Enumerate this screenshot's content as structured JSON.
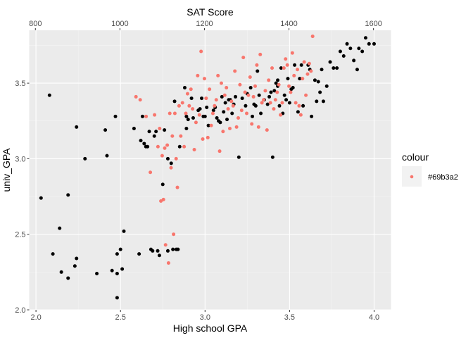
{
  "chart_data": {
    "type": "scatter",
    "xlabel": "High school GPA",
    "ylabel": "univ_GPA",
    "x2label": "SAT Score",
    "xlim": [
      1.96,
      4.1
    ],
    "ylim": [
      2.0,
      3.85
    ],
    "x2lim": [
      785.4,
      1641.4
    ],
    "xticks": [
      "2.0",
      "2.5",
      "3.0",
      "3.5",
      "4.0"
    ],
    "yticks": [
      "2.0",
      "2.5",
      "3.0",
      "3.5"
    ],
    "x2ticks": [
      "800",
      "1000",
      "1200",
      "1400",
      "1600"
    ],
    "grid": true,
    "legend": {
      "title": "colour",
      "entries": [
        {
          "label": "#69b3a2",
          "color": "#f8766d"
        }
      ],
      "placement": "right"
    },
    "series": [
      {
        "color": "#000000",
        "axis": "High school GPA",
        "points": [
          [
            2.03,
            2.74
          ],
          [
            2.08,
            3.42
          ],
          [
            2.1,
            2.37
          ],
          [
            2.14,
            2.54
          ],
          [
            2.15,
            2.25
          ],
          [
            2.19,
            2.76
          ],
          [
            2.19,
            2.21
          ],
          [
            2.23,
            2.29
          ],
          [
            2.24,
            3.21
          ],
          [
            2.24,
            2.34
          ],
          [
            2.29,
            3.0
          ],
          [
            2.36,
            2.24
          ],
          [
            2.41,
            3.19
          ],
          [
            2.42,
            3.02
          ],
          [
            2.45,
            2.26
          ],
          [
            2.47,
            3.28
          ],
          [
            2.48,
            2.37
          ],
          [
            2.48,
            2.24
          ],
          [
            2.48,
            2.08
          ],
          [
            2.5,
            2.4
          ],
          [
            2.51,
            2.27
          ],
          [
            2.52,
            2.52
          ],
          [
            2.58,
            3.2
          ],
          [
            2.61,
            2.37
          ],
          [
            2.62,
            3.12
          ],
          [
            2.63,
            3.28
          ],
          [
            2.64,
            3.1
          ],
          [
            2.65,
            3.08
          ],
          [
            2.66,
            3.08
          ],
          [
            2.67,
            3.18
          ],
          [
            2.68,
            2.4
          ],
          [
            2.69,
            2.39
          ],
          [
            2.7,
            3.15
          ],
          [
            2.71,
            3.18
          ],
          [
            2.72,
            2.39
          ],
          [
            2.73,
            2.36
          ],
          [
            2.75,
            2.83
          ],
          [
            2.76,
            3.19
          ],
          [
            2.78,
            2.39
          ],
          [
            2.78,
            3.0
          ],
          [
            2.8,
            2.97
          ],
          [
            2.81,
            2.4
          ],
          [
            2.82,
            3.38
          ],
          [
            2.83,
            2.4
          ],
          [
            2.84,
            2.4
          ],
          [
            2.85,
            3.08
          ],
          [
            2.88,
            3.47
          ],
          [
            2.89,
            3.2
          ],
          [
            2.89,
            3.28
          ],
          [
            2.9,
            3.26
          ],
          [
            2.92,
            3.4
          ],
          [
            2.93,
            3.27
          ],
          [
            2.96,
            3.32
          ],
          [
            2.97,
            3.33
          ],
          [
            2.98,
            3.4
          ],
          [
            2.99,
            3.28
          ],
          [
            3.0,
            3.28
          ],
          [
            3.01,
            3.34
          ],
          [
            3.02,
            3.22
          ],
          [
            3.05,
            3.32
          ],
          [
            3.06,
            3.34
          ],
          [
            3.07,
            3.27
          ],
          [
            3.08,
            3.25
          ],
          [
            3.09,
            3.24
          ],
          [
            3.1,
            3.41
          ],
          [
            3.11,
            3.31
          ],
          [
            3.12,
            3.37
          ],
          [
            3.13,
            3.26
          ],
          [
            3.14,
            3.39
          ],
          [
            3.15,
            3.39
          ],
          [
            3.16,
            3.3
          ],
          [
            3.17,
            3.36
          ],
          [
            3.18,
            3.41
          ],
          [
            3.2,
            3.01
          ],
          [
            3.22,
            3.4
          ],
          [
            3.24,
            3.35
          ],
          [
            3.25,
            3.43
          ],
          [
            3.27,
            3.47
          ],
          [
            3.28,
            3.28
          ],
          [
            3.29,
            3.36
          ],
          [
            3.3,
            3.35
          ],
          [
            3.31,
            3.58
          ],
          [
            3.32,
            3.42
          ],
          [
            3.33,
            3.3
          ],
          [
            3.35,
            3.39
          ],
          [
            3.37,
            3.36
          ],
          [
            3.38,
            3.41
          ],
          [
            3.39,
            3.44
          ],
          [
            3.4,
            3.01
          ],
          [
            3.41,
            3.45
          ],
          [
            3.42,
            3.5
          ],
          [
            3.43,
            3.52
          ],
          [
            3.43,
            3.48
          ],
          [
            3.44,
            3.35
          ],
          [
            3.45,
            3.6
          ],
          [
            3.46,
            3.3
          ],
          [
            3.47,
            3.42
          ],
          [
            3.48,
            3.39
          ],
          [
            3.49,
            3.53
          ],
          [
            3.5,
            3.37
          ],
          [
            3.51,
            3.46
          ],
          [
            3.52,
            3.47
          ],
          [
            3.53,
            3.62
          ],
          [
            3.55,
            3.31
          ],
          [
            3.56,
            3.53
          ],
          [
            3.57,
            3.62
          ],
          [
            3.58,
            3.35
          ],
          [
            3.61,
            3.62
          ],
          [
            3.62,
            3.59
          ],
          [
            3.63,
            3.28
          ],
          [
            3.65,
            3.52
          ],
          [
            3.66,
            3.38
          ],
          [
            3.67,
            3.51
          ],
          [
            3.68,
            3.44
          ],
          [
            3.69,
            3.59
          ],
          [
            3.7,
            3.38
          ],
          [
            3.72,
            3.48
          ],
          [
            3.74,
            3.64
          ],
          [
            3.76,
            3.6
          ],
          [
            3.78,
            3.6
          ],
          [
            3.8,
            3.71
          ],
          [
            3.82,
            3.68
          ],
          [
            3.84,
            3.76
          ],
          [
            3.86,
            3.73
          ],
          [
            3.88,
            3.65
          ],
          [
            3.9,
            3.59
          ],
          [
            3.91,
            3.73
          ],
          [
            3.93,
            3.71
          ],
          [
            3.95,
            3.8
          ],
          [
            3.97,
            3.76
          ],
          [
            4.0,
            3.76
          ]
        ]
      },
      {
        "color": "#f8766d",
        "axis": "SAT Score",
        "points": [
          [
            1038,
            3.41
          ],
          [
            1048,
            3.39
          ],
          [
            1062,
            3.28
          ],
          [
            1072,
            2.91
          ],
          [
            1082,
            3.29
          ],
          [
            1090,
            3.08
          ],
          [
            1094,
            3.2
          ],
          [
            1097,
            2.72
          ],
          [
            1100,
            3.02
          ],
          [
            1103,
            2.73
          ],
          [
            1106,
            3.07
          ],
          [
            1108,
            2.43
          ],
          [
            1112,
            3.09
          ],
          [
            1115,
            2.31
          ],
          [
            1118,
            3.3
          ],
          [
            1121,
            2.94
          ],
          [
            1124,
            3.15
          ],
          [
            1127,
            2.5
          ],
          [
            1130,
            3.3
          ],
          [
            1133,
            3.0
          ],
          [
            1136,
            2.81
          ],
          [
            1140,
            3.35
          ],
          [
            1144,
            3.15
          ],
          [
            1148,
            3.37
          ],
          [
            1152,
            3.08
          ],
          [
            1156,
            3.3
          ],
          [
            1160,
            3.43
          ],
          [
            1164,
            3.35
          ],
          [
            1168,
            3.46
          ],
          [
            1172,
            3.33
          ],
          [
            1176,
            3.06
          ],
          [
            1180,
            3.24
          ],
          [
            1184,
            3.55
          ],
          [
            1188,
            3.29
          ],
          [
            1192,
            3.71
          ],
          [
            1196,
            3.13
          ],
          [
            1200,
            3.53
          ],
          [
            1204,
            3.4
          ],
          [
            1208,
            3.14
          ],
          [
            1212,
            3.46
          ],
          [
            1216,
            3.22
          ],
          [
            1220,
            3.3
          ],
          [
            1224,
            3.35
          ],
          [
            1228,
            3.39
          ],
          [
            1232,
            3.55
          ],
          [
            1236,
            3.05
          ],
          [
            1240,
            3.5
          ],
          [
            1244,
            3.18
          ],
          [
            1248,
            3.42
          ],
          [
            1252,
            3.47
          ],
          [
            1256,
            3.33
          ],
          [
            1260,
            3.2
          ],
          [
            1264,
            3.38
          ],
          [
            1268,
            3.35
          ],
          [
            1272,
            3.58
          ],
          [
            1276,
            3.21
          ],
          [
            1280,
            3.27
          ],
          [
            1284,
            3.49
          ],
          [
            1288,
            3.32
          ],
          [
            1292,
            3.67
          ],
          [
            1296,
            3.44
          ],
          [
            1300,
            3.3
          ],
          [
            1304,
            3.42
          ],
          [
            1308,
            3.54
          ],
          [
            1312,
            3.23
          ],
          [
            1316,
            3.41
          ],
          [
            1320,
            3.48
          ],
          [
            1324,
            3.62
          ],
          [
            1328,
            3.21
          ],
          [
            1332,
            3.69
          ],
          [
            1336,
            3.37
          ],
          [
            1340,
            3.39
          ],
          [
            1344,
            3.45
          ],
          [
            1348,
            3.19
          ],
          [
            1352,
            3.52
          ],
          [
            1356,
            3.37
          ],
          [
            1360,
            3.6
          ],
          [
            1364,
            3.33
          ],
          [
            1368,
            3.39
          ],
          [
            1372,
            3.44
          ],
          [
            1376,
            3.49
          ],
          [
            1380,
            3.29
          ],
          [
            1384,
            3.37
          ],
          [
            1388,
            3.6
          ],
          [
            1392,
            3.66
          ],
          [
            1396,
            3.62
          ],
          [
            1400,
            3.48
          ],
          [
            1404,
            3.44
          ],
          [
            1408,
            3.7
          ],
          [
            1412,
            3.55
          ],
          [
            1416,
            3.37
          ],
          [
            1420,
            3.59
          ],
          [
            1424,
            3.35
          ],
          [
            1428,
            3.29
          ],
          [
            1432,
            3.53
          ],
          [
            1436,
            3.64
          ],
          [
            1440,
            3.42
          ],
          [
            1444,
            3.56
          ],
          [
            1448,
            3.63
          ],
          [
            1452,
            3.58
          ],
          [
            1456,
            3.81
          ]
        ]
      }
    ]
  }
}
